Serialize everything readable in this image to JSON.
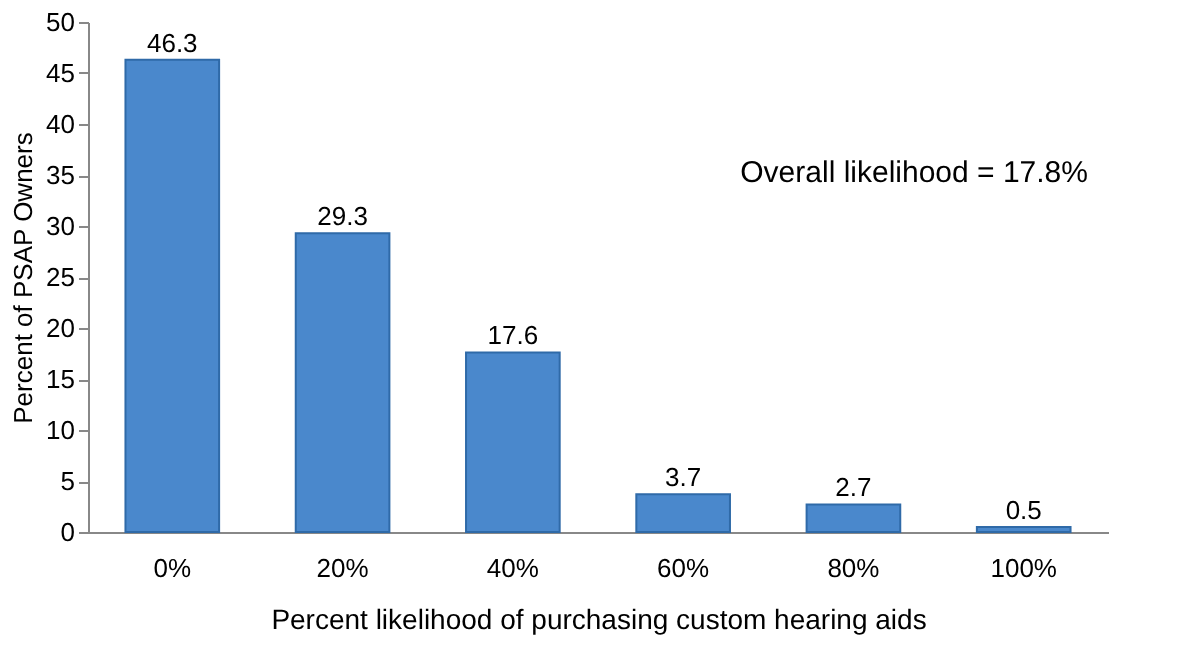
{
  "chart_data": {
    "type": "bar",
    "categories": [
      "0%",
      "20%",
      "40%",
      "60%",
      "80%",
      "100%"
    ],
    "values": [
      46.3,
      29.3,
      17.6,
      3.7,
      2.7,
      0.5
    ],
    "color": "#4a88cc",
    "xlabel": "Percent likelihood of purchasing custom hearing aids",
    "ylabel": "Percent of PSAP Owners",
    "ylim": [
      0,
      50
    ],
    "yticks": [
      0,
      5,
      10,
      15,
      20,
      25,
      30,
      35,
      40,
      45,
      50
    ],
    "data_labels": true,
    "grid": false,
    "annotations": [
      "Overall likelihood = 17.8%"
    ]
  }
}
